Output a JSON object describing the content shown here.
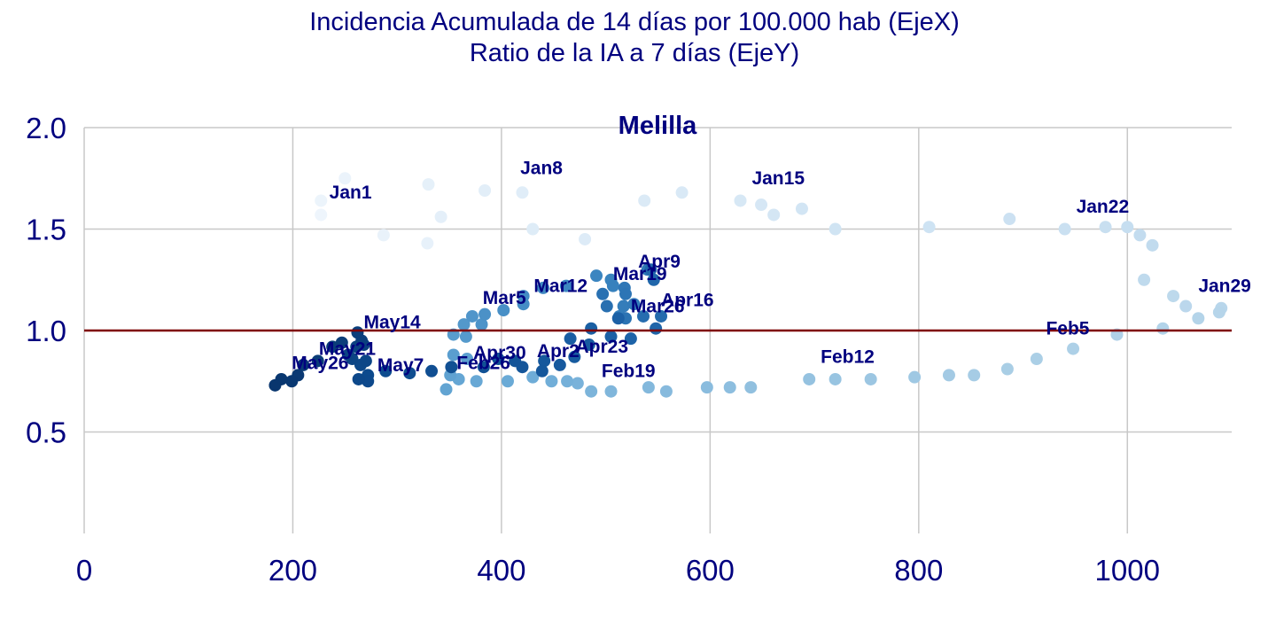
{
  "chart_data": {
    "type": "scatter",
    "title": [
      "Incidencia Acumulada de 14 días por 100.000 hab (EjeX)",
      "Ratio de la IA a 7 días (EjeY)"
    ],
    "panel_title": "Melilla",
    "xlim": [
      0,
      1100
    ],
    "ylim": [
      0,
      2.0
    ],
    "x_ticks": [
      0,
      200,
      400,
      600,
      800,
      1000
    ],
    "x_tick_labels": [
      "0",
      "200",
      "400",
      "600",
      "800",
      "1000"
    ],
    "y_ticks": [
      0.5,
      1.0,
      1.5,
      2.0
    ],
    "y_tick_labels": [
      "0.5",
      "1.0",
      "1.5",
      "2.0"
    ],
    "grid": true,
    "reference_line": {
      "y": 1.0,
      "color": "#7f0000"
    },
    "colors": {
      "title": "#00007f",
      "grid": "#c8c8c8",
      "gradient": [
        "#eef5fc",
        "#cfe3f3",
        "#a8cde5",
        "#6aaad6",
        "#3b85c0",
        "#1c62a7",
        "#0d4a8d",
        "#09366e"
      ]
    },
    "points": [
      {
        "x": 227,
        "y": 1.57
      },
      {
        "x": 227,
        "y": 1.64
      },
      {
        "x": 250,
        "y": 1.75
      },
      {
        "x": 287,
        "y": 1.47
      },
      {
        "x": 329,
        "y": 1.43
      },
      {
        "x": 330,
        "y": 1.72
      },
      {
        "x": 342,
        "y": 1.56
      },
      {
        "x": 384,
        "y": 1.69
      },
      {
        "x": 420,
        "y": 1.68
      },
      {
        "x": 430,
        "y": 1.5
      },
      {
        "x": 480,
        "y": 1.45
      },
      {
        "x": 537,
        "y": 1.64
      },
      {
        "x": 573,
        "y": 1.68
      },
      {
        "x": 629,
        "y": 1.64
      },
      {
        "x": 649,
        "y": 1.62
      },
      {
        "x": 661,
        "y": 1.57
      },
      {
        "x": 688,
        "y": 1.6
      },
      {
        "x": 720,
        "y": 1.5
      },
      {
        "x": 810,
        "y": 1.51
      },
      {
        "x": 887,
        "y": 1.55
      },
      {
        "x": 940,
        "y": 1.5
      },
      {
        "x": 979,
        "y": 1.51
      },
      {
        "x": 1000,
        "y": 1.51
      },
      {
        "x": 1012,
        "y": 1.47
      },
      {
        "x": 1024,
        "y": 1.42
      },
      {
        "x": 1016,
        "y": 1.25
      },
      {
        "x": 1044,
        "y": 1.17
      },
      {
        "x": 1056,
        "y": 1.12
      },
      {
        "x": 1090,
        "y": 1.11
      },
      {
        "x": 1088,
        "y": 1.09
      },
      {
        "x": 1068,
        "y": 1.06
      },
      {
        "x": 1034,
        "y": 1.01
      },
      {
        "x": 990,
        "y": 0.98
      },
      {
        "x": 948,
        "y": 0.91
      },
      {
        "x": 913,
        "y": 0.86
      },
      {
        "x": 885,
        "y": 0.81
      },
      {
        "x": 853,
        "y": 0.78
      },
      {
        "x": 829,
        "y": 0.78
      },
      {
        "x": 796,
        "y": 0.77
      },
      {
        "x": 754,
        "y": 0.76
      },
      {
        "x": 720,
        "y": 0.76
      },
      {
        "x": 695,
        "y": 0.76
      },
      {
        "x": 639,
        "y": 0.72
      },
      {
        "x": 619,
        "y": 0.72
      },
      {
        "x": 597,
        "y": 0.72
      },
      {
        "x": 558,
        "y": 0.7
      },
      {
        "x": 541,
        "y": 0.72
      },
      {
        "x": 505,
        "y": 0.7
      },
      {
        "x": 486,
        "y": 0.7
      },
      {
        "x": 473,
        "y": 0.74
      },
      {
        "x": 463,
        "y": 0.75
      },
      {
        "x": 448,
        "y": 0.75
      },
      {
        "x": 430,
        "y": 0.77
      },
      {
        "x": 406,
        "y": 0.75
      },
      {
        "x": 376,
        "y": 0.75
      },
      {
        "x": 359,
        "y": 0.76
      },
      {
        "x": 347,
        "y": 0.71
      },
      {
        "x": 351,
        "y": 0.78
      },
      {
        "x": 367,
        "y": 0.86
      },
      {
        "x": 354,
        "y": 0.88
      },
      {
        "x": 354,
        "y": 0.98
      },
      {
        "x": 366,
        "y": 0.97
      },
      {
        "x": 364,
        "y": 1.03
      },
      {
        "x": 372,
        "y": 1.07
      },
      {
        "x": 381,
        "y": 1.03
      },
      {
        "x": 384,
        "y": 1.08
      },
      {
        "x": 402,
        "y": 1.1
      },
      {
        "x": 421,
        "y": 1.13
      },
      {
        "x": 421,
        "y": 1.17
      },
      {
        "x": 440,
        "y": 1.21
      },
      {
        "x": 462,
        "y": 1.22
      },
      {
        "x": 491,
        "y": 1.27
      },
      {
        "x": 505,
        "y": 1.25
      },
      {
        "x": 507,
        "y": 1.22
      },
      {
        "x": 513,
        "y": 1.07
      },
      {
        "x": 517,
        "y": 1.12
      },
      {
        "x": 527,
        "y": 1.13
      },
      {
        "x": 540,
        "y": 1.3
      },
      {
        "x": 518,
        "y": 1.21
      },
      {
        "x": 519,
        "y": 1.18
      },
      {
        "x": 519,
        "y": 1.06
      },
      {
        "x": 497,
        "y": 1.18
      },
      {
        "x": 501,
        "y": 1.12
      },
      {
        "x": 536,
        "y": 1.07
      },
      {
        "x": 553,
        "y": 1.07
      },
      {
        "x": 543,
        "y": 1.3
      },
      {
        "x": 546,
        "y": 1.25
      },
      {
        "x": 548,
        "y": 1.01
      },
      {
        "x": 524,
        "y": 0.96
      },
      {
        "x": 512,
        "y": 1.06
      },
      {
        "x": 505,
        "y": 0.97
      },
      {
        "x": 486,
        "y": 1.01
      },
      {
        "x": 466,
        "y": 0.96
      },
      {
        "x": 484,
        "y": 0.93
      },
      {
        "x": 470,
        "y": 0.87
      },
      {
        "x": 456,
        "y": 0.83
      },
      {
        "x": 441,
        "y": 0.85
      },
      {
        "x": 439,
        "y": 0.8
      },
      {
        "x": 420,
        "y": 0.82
      },
      {
        "x": 413,
        "y": 0.85
      },
      {
        "x": 397,
        "y": 0.86
      },
      {
        "x": 383,
        "y": 0.82
      },
      {
        "x": 352,
        "y": 0.82
      },
      {
        "x": 333,
        "y": 0.8
      },
      {
        "x": 312,
        "y": 0.79
      },
      {
        "x": 289,
        "y": 0.8
      },
      {
        "x": 272,
        "y": 0.78
      },
      {
        "x": 272,
        "y": 0.75
      },
      {
        "x": 263,
        "y": 0.76
      },
      {
        "x": 265,
        "y": 0.83
      },
      {
        "x": 270,
        "y": 0.85
      },
      {
        "x": 257,
        "y": 0.86
      },
      {
        "x": 253,
        "y": 0.88
      },
      {
        "x": 261,
        "y": 0.92
      },
      {
        "x": 268,
        "y": 0.93
      },
      {
        "x": 266,
        "y": 0.95
      },
      {
        "x": 262,
        "y": 0.99
      },
      {
        "x": 247,
        "y": 0.94
      },
      {
        "x": 238,
        "y": 0.92
      },
      {
        "x": 224,
        "y": 0.85
      },
      {
        "x": 210,
        "y": 0.83
      },
      {
        "x": 205,
        "y": 0.78
      },
      {
        "x": 199,
        "y": 0.75
      },
      {
        "x": 189,
        "y": 0.76
      },
      {
        "x": 183,
        "y": 0.73
      }
    ],
    "annotations": [
      {
        "text": "Jan1",
        "x": 235,
        "y": 1.65
      },
      {
        "text": "Jan8",
        "x": 418,
        "y": 1.77
      },
      {
        "text": "Jan15",
        "x": 640,
        "y": 1.72
      },
      {
        "text": "Jan22",
        "x": 951,
        "y": 1.58
      },
      {
        "text": "Jan29",
        "x": 1068,
        "y": 1.19
      },
      {
        "text": "Feb5",
        "x": 922,
        "y": 0.98
      },
      {
        "text": "Feb12",
        "x": 706,
        "y": 0.84
      },
      {
        "text": "Feb19",
        "x": 496,
        "y": 0.77
      },
      {
        "text": "Feb26",
        "x": 357,
        "y": 0.81
      },
      {
        "text": "Mar5",
        "x": 382,
        "y": 1.13
      },
      {
        "text": "Mar12",
        "x": 431,
        "y": 1.19
      },
      {
        "text": "Mar19",
        "x": 507,
        "y": 1.25
      },
      {
        "text": "Mar26",
        "x": 524,
        "y": 1.09
      },
      {
        "text": "Apr9",
        "x": 531,
        "y": 1.31
      },
      {
        "text": "Apr16",
        "x": 553,
        "y": 1.12
      },
      {
        "text": "Apr23",
        "x": 471,
        "y": 0.89
      },
      {
        "text": "Apr2",
        "x": 434,
        "y": 0.87
      },
      {
        "text": "Apr30",
        "x": 373,
        "y": 0.86
      },
      {
        "text": "May7",
        "x": 281,
        "y": 0.8
      },
      {
        "text": "May14",
        "x": 268,
        "y": 1.01
      },
      {
        "text": "May21",
        "x": 225,
        "y": 0.88
      },
      {
        "text": "May26",
        "x": 199,
        "y": 0.81
      }
    ]
  }
}
